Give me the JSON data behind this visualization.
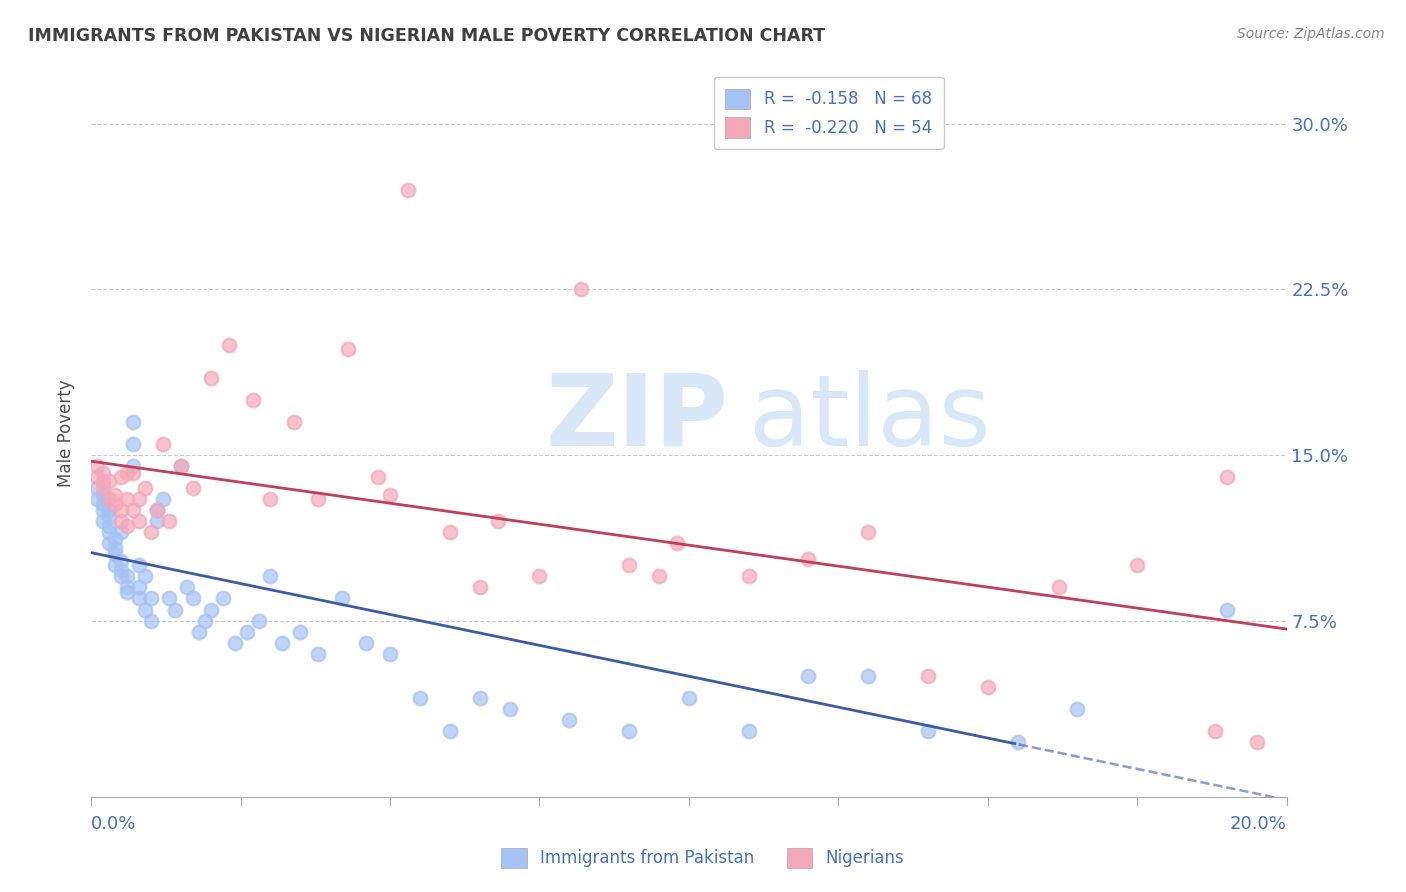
{
  "title": "IMMIGRANTS FROM PAKISTAN VS NIGERIAN MALE POVERTY CORRELATION CHART",
  "source": "Source: ZipAtlas.com",
  "ylabel": "Male Poverty",
  "ytick_labels": [
    "7.5%",
    "15.0%",
    "22.5%",
    "30.0%"
  ],
  "ytick_values": [
    0.075,
    0.15,
    0.225,
    0.3
  ],
  "xlim": [
    0.0,
    0.2
  ],
  "ylim": [
    -0.005,
    0.325
  ],
  "legend_r1": "R =  -0.158",
  "legend_n1": "N = 68",
  "legend_r2": "R =  -0.220",
  "legend_n2": "N = 54",
  "blue_color": "#a4c2f4",
  "pink_color": "#f4a7b9",
  "blue_line_color": "#3c5ca8",
  "pink_line_color": "#c0405a",
  "axis_label_color": "#4472c4",
  "title_color": "#404040",
  "watermark_zip": "ZIP",
  "watermark_atlas": "atlas",
  "pakistan_x": [
    0.001,
    0.001,
    0.002,
    0.002,
    0.002,
    0.002,
    0.003,
    0.003,
    0.003,
    0.003,
    0.003,
    0.004,
    0.004,
    0.004,
    0.004,
    0.005,
    0.005,
    0.005,
    0.005,
    0.006,
    0.006,
    0.006,
    0.007,
    0.007,
    0.007,
    0.008,
    0.008,
    0.008,
    0.009,
    0.009,
    0.01,
    0.01,
    0.011,
    0.011,
    0.012,
    0.013,
    0.014,
    0.015,
    0.016,
    0.017,
    0.018,
    0.019,
    0.02,
    0.022,
    0.024,
    0.026,
    0.028,
    0.03,
    0.032,
    0.035,
    0.038,
    0.042,
    0.046,
    0.05,
    0.055,
    0.06,
    0.065,
    0.07,
    0.08,
    0.09,
    0.1,
    0.11,
    0.12,
    0.13,
    0.14,
    0.155,
    0.165,
    0.19
  ],
  "pakistan_y": [
    0.13,
    0.135,
    0.128,
    0.132,
    0.12,
    0.125,
    0.122,
    0.118,
    0.115,
    0.11,
    0.125,
    0.105,
    0.112,
    0.108,
    0.1,
    0.095,
    0.098,
    0.102,
    0.115,
    0.09,
    0.095,
    0.088,
    0.145,
    0.155,
    0.165,
    0.085,
    0.09,
    0.1,
    0.08,
    0.095,
    0.075,
    0.085,
    0.12,
    0.125,
    0.13,
    0.085,
    0.08,
    0.145,
    0.09,
    0.085,
    0.07,
    0.075,
    0.08,
    0.085,
    0.065,
    0.07,
    0.075,
    0.095,
    0.065,
    0.07,
    0.06,
    0.085,
    0.065,
    0.06,
    0.04,
    0.025,
    0.04,
    0.035,
    0.03,
    0.025,
    0.04,
    0.025,
    0.05,
    0.05,
    0.025,
    0.02,
    0.035,
    0.08
  ],
  "nigerian_x": [
    0.001,
    0.001,
    0.002,
    0.002,
    0.002,
    0.003,
    0.003,
    0.004,
    0.004,
    0.005,
    0.005,
    0.005,
    0.006,
    0.006,
    0.006,
    0.007,
    0.007,
    0.008,
    0.008,
    0.009,
    0.01,
    0.011,
    0.012,
    0.013,
    0.015,
    0.017,
    0.02,
    0.023,
    0.027,
    0.03,
    0.034,
    0.038,
    0.043,
    0.048,
    0.053,
    0.06,
    0.068,
    0.075,
    0.082,
    0.09,
    0.098,
    0.11,
    0.12,
    0.13,
    0.14,
    0.15,
    0.162,
    0.175,
    0.188,
    0.195,
    0.05,
    0.065,
    0.095,
    0.19
  ],
  "nigerian_y": [
    0.14,
    0.145,
    0.138,
    0.142,
    0.135,
    0.13,
    0.138,
    0.132,
    0.128,
    0.14,
    0.12,
    0.125,
    0.142,
    0.118,
    0.13,
    0.142,
    0.125,
    0.13,
    0.12,
    0.135,
    0.115,
    0.125,
    0.155,
    0.12,
    0.145,
    0.135,
    0.185,
    0.2,
    0.175,
    0.13,
    0.165,
    0.13,
    0.198,
    0.14,
    0.27,
    0.115,
    0.12,
    0.095,
    0.225,
    0.1,
    0.11,
    0.095,
    0.103,
    0.115,
    0.05,
    0.045,
    0.09,
    0.1,
    0.025,
    0.02,
    0.132,
    0.09,
    0.095,
    0.14
  ],
  "pk_trend_x_start": 0.0,
  "pk_trend_x_solid_end": 0.155,
  "pk_trend_x_dashed_end": 0.2,
  "ng_trend_x_start": 0.0,
  "ng_trend_x_end": 0.2
}
